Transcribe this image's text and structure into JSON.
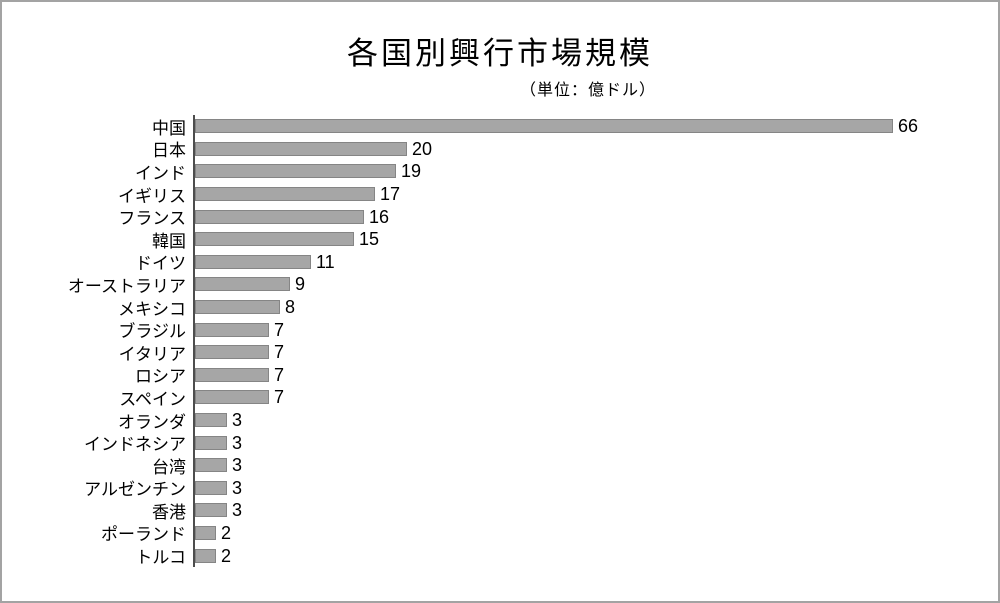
{
  "title": "各国別興行市場規模",
  "subtitle": "（単位：億ドル）",
  "chart_data": {
    "type": "bar",
    "orientation": "horizontal",
    "title": "各国別興行市場規模",
    "subtitle": "（単位：億ドル）",
    "unit": "億ドル",
    "categories": [
      "中国",
      "日本",
      "インド",
      "イギリス",
      "フランス",
      "韓国",
      "ドイツ",
      "オーストラリア",
      "メキシコ",
      "ブラジル",
      "イタリア",
      "ロシア",
      "スペイン",
      "オランダ",
      "インドネシア",
      "台湾",
      "アルゼンチン",
      "香港",
      "ポーランド",
      "トルコ"
    ],
    "values": [
      66,
      20,
      19,
      17,
      16,
      15,
      11,
      9,
      8,
      7,
      7,
      7,
      7,
      3,
      3,
      3,
      3,
      3,
      2,
      2
    ],
    "xlim": [
      0,
      66
    ],
    "data_labels": true,
    "legend": false,
    "grid": false,
    "bar_color": "#a6a6a6",
    "bar_border_color": "#858585",
    "axis_color": "#4d4d4d",
    "text_color": "#000000",
    "background_color": "#ffffff"
  }
}
